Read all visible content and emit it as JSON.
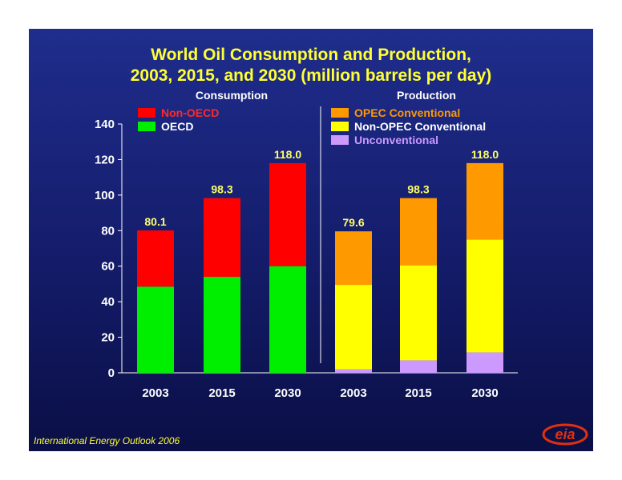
{
  "title_line1": "World Oil Consumption and Production,",
  "title_line2": "2003, 2015, and 2030 (million barrels per day)",
  "footer": "International Energy Outlook 2006",
  "logo_text": "eia",
  "colors": {
    "non_oecd": "#ff0000",
    "oecd": "#00ee00",
    "opec": "#ff9900",
    "non_opec": "#ffff00",
    "unconventional": "#cc99ff",
    "text": "#ffffff",
    "total_label": "#ffff66",
    "title": "#ffff33"
  },
  "chart_data": {
    "type": "bar",
    "stacked": true,
    "ylim": [
      0,
      140
    ],
    "yticks": [
      0,
      20,
      40,
      60,
      80,
      100,
      120,
      140
    ],
    "panels": [
      {
        "label": "Consumption",
        "categories": [
          "2003",
          "2015",
          "2030"
        ],
        "totals_label": [
          "80.1",
          "98.3",
          "118.0"
        ],
        "series": [
          {
            "name": "OECD",
            "key": "oecd",
            "values": [
              48.5,
              54,
              60
            ]
          },
          {
            "name": "Non-OECD",
            "key": "non_oecd",
            "values": [
              31.6,
              44.3,
              58
            ]
          }
        ],
        "legend": [
          {
            "name": "Non-OECD",
            "key": "non_oecd"
          },
          {
            "name": "OECD",
            "key": "oecd"
          }
        ]
      },
      {
        "label": "Production",
        "categories": [
          "2003",
          "2015",
          "2030"
        ],
        "totals_label": [
          "79.6",
          "98.3",
          "118.0"
        ],
        "series": [
          {
            "name": "Unconventional",
            "key": "unconventional",
            "values": [
              2,
              7,
              11.5
            ]
          },
          {
            "name": "Non-OPEC Conventional",
            "key": "non_opec",
            "values": [
              47.5,
              53.5,
              63.5
            ]
          },
          {
            "name": "OPEC Conventional",
            "key": "opec",
            "values": [
              30.1,
              37.8,
              43
            ]
          }
        ],
        "legend": [
          {
            "name": "OPEC Conventional",
            "key": "opec"
          },
          {
            "name": "Non-OPEC Conventional",
            "key": "non_opec"
          },
          {
            "name": "Unconventional",
            "key": "unconventional"
          }
        ]
      }
    ]
  }
}
